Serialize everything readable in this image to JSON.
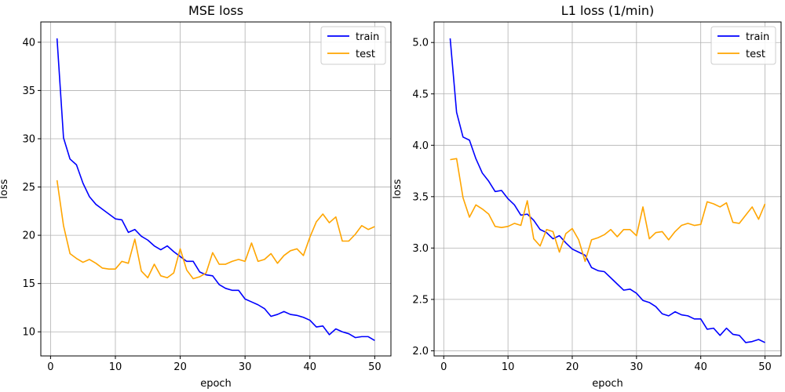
{
  "chart_data": [
    {
      "type": "line",
      "title": "MSE loss",
      "xlabel": "epoch",
      "ylabel": "loss",
      "xlim": [
        -1.5,
        52.5
      ],
      "ylim": [
        7.5,
        42.1
      ],
      "xticks": [
        0,
        10,
        20,
        30,
        40,
        50
      ],
      "yticks": [
        10,
        15,
        20,
        25,
        30,
        35,
        40
      ],
      "ytick_labels": [
        "10",
        "15",
        "20",
        "25",
        "30",
        "35",
        "40"
      ],
      "grid": true,
      "legend_position": "top-right",
      "series": [
        {
          "name": "train",
          "color": "#0000ff",
          "x": [
            1,
            2,
            3,
            4,
            5,
            6,
            7,
            8,
            9,
            10,
            11,
            12,
            13,
            14,
            15,
            16,
            17,
            18,
            19,
            20,
            21,
            22,
            23,
            24,
            25,
            26,
            27,
            28,
            29,
            30,
            31,
            32,
            33,
            34,
            35,
            36,
            37,
            38,
            39,
            40,
            41,
            42,
            43,
            44,
            45,
            46,
            47,
            48,
            49,
            50
          ],
          "values": [
            40.4,
            30.1,
            27.9,
            27.3,
            25.4,
            24.0,
            23.2,
            22.7,
            22.2,
            21.7,
            21.6,
            20.3,
            20.6,
            19.9,
            19.5,
            18.9,
            18.5,
            18.9,
            18.3,
            17.8,
            17.3,
            17.3,
            16.2,
            15.9,
            15.8,
            14.9,
            14.5,
            14.3,
            14.3,
            13.4,
            13.1,
            12.8,
            12.4,
            11.6,
            11.8,
            12.1,
            11.8,
            11.7,
            11.5,
            11.2,
            10.5,
            10.6,
            9.7,
            10.3,
            10.0,
            9.8,
            9.4,
            9.5,
            9.5,
            9.1
          ]
        },
        {
          "name": "test",
          "color": "#ffa500",
          "x": [
            1,
            2,
            3,
            4,
            5,
            6,
            7,
            8,
            9,
            10,
            11,
            12,
            13,
            14,
            15,
            16,
            17,
            18,
            19,
            20,
            21,
            22,
            23,
            24,
            25,
            26,
            27,
            28,
            29,
            30,
            31,
            32,
            33,
            34,
            35,
            36,
            37,
            38,
            39,
            40,
            41,
            42,
            43,
            44,
            45,
            46,
            47,
            48,
            49,
            50
          ],
          "values": [
            25.7,
            21.0,
            18.1,
            17.6,
            17.2,
            17.5,
            17.1,
            16.6,
            16.5,
            16.5,
            17.3,
            17.1,
            19.6,
            16.3,
            15.6,
            17.0,
            15.8,
            15.6,
            16.1,
            18.6,
            16.4,
            15.5,
            15.7,
            16.1,
            18.2,
            17.0,
            17.0,
            17.3,
            17.5,
            17.3,
            19.2,
            17.3,
            17.5,
            18.1,
            17.1,
            17.9,
            18.4,
            18.6,
            17.9,
            19.8,
            21.4,
            22.2,
            21.3,
            21.9,
            19.4,
            19.4,
            20.1,
            21.0,
            20.6,
            20.9
          ]
        }
      ]
    },
    {
      "type": "line",
      "title": "L1 loss (1/min)",
      "xlabel": "epoch",
      "ylabel": "loss",
      "xlim": [
        -1.5,
        52.5
      ],
      "ylim": [
        1.95,
        5.2
      ],
      "xticks": [
        0,
        10,
        20,
        30,
        40,
        50
      ],
      "yticks": [
        2.0,
        2.5,
        3.0,
        3.5,
        4.0,
        4.5,
        5.0
      ],
      "ytick_labels": [
        "2.0",
        "2.5",
        "3.0",
        "3.5",
        "4.0",
        "4.5",
        "5.0"
      ],
      "grid": true,
      "legend_position": "top-right",
      "series": [
        {
          "name": "train",
          "color": "#0000ff",
          "x": [
            1,
            2,
            3,
            4,
            5,
            6,
            7,
            8,
            9,
            10,
            11,
            12,
            13,
            14,
            15,
            16,
            17,
            18,
            19,
            20,
            21,
            22,
            23,
            24,
            25,
            26,
            27,
            28,
            29,
            30,
            31,
            32,
            33,
            34,
            35,
            36,
            37,
            38,
            39,
            40,
            41,
            42,
            43,
            44,
            45,
            46,
            47,
            48,
            49,
            50
          ],
          "values": [
            5.04,
            4.32,
            4.08,
            4.05,
            3.87,
            3.73,
            3.65,
            3.55,
            3.56,
            3.48,
            3.42,
            3.32,
            3.33,
            3.27,
            3.18,
            3.15,
            3.09,
            3.12,
            3.05,
            2.99,
            2.96,
            2.93,
            2.81,
            2.78,
            2.77,
            2.71,
            2.65,
            2.59,
            2.6,
            2.56,
            2.49,
            2.47,
            2.43,
            2.36,
            2.34,
            2.38,
            2.35,
            2.34,
            2.31,
            2.31,
            2.21,
            2.22,
            2.15,
            2.22,
            2.16,
            2.15,
            2.08,
            2.09,
            2.11,
            2.08
          ]
        },
        {
          "name": "test",
          "color": "#ffa500",
          "x": [
            1,
            2,
            3,
            4,
            5,
            6,
            7,
            8,
            9,
            10,
            11,
            12,
            13,
            14,
            15,
            16,
            17,
            18,
            19,
            20,
            21,
            22,
            23,
            24,
            25,
            26,
            27,
            28,
            29,
            30,
            31,
            32,
            33,
            34,
            35,
            36,
            37,
            38,
            39,
            40,
            41,
            42,
            43,
            44,
            45,
            46,
            47,
            48,
            49,
            50
          ],
          "values": [
            3.86,
            3.87,
            3.49,
            3.3,
            3.42,
            3.38,
            3.33,
            3.21,
            3.2,
            3.21,
            3.24,
            3.22,
            3.46,
            3.09,
            3.02,
            3.18,
            3.16,
            2.96,
            3.14,
            3.19,
            3.08,
            2.87,
            3.08,
            3.1,
            3.13,
            3.18,
            3.11,
            3.18,
            3.18,
            3.12,
            3.4,
            3.09,
            3.15,
            3.16,
            3.08,
            3.16,
            3.22,
            3.24,
            3.22,
            3.23,
            3.45,
            3.43,
            3.4,
            3.44,
            3.25,
            3.24,
            3.32,
            3.4,
            3.28,
            3.43
          ]
        }
      ]
    }
  ]
}
